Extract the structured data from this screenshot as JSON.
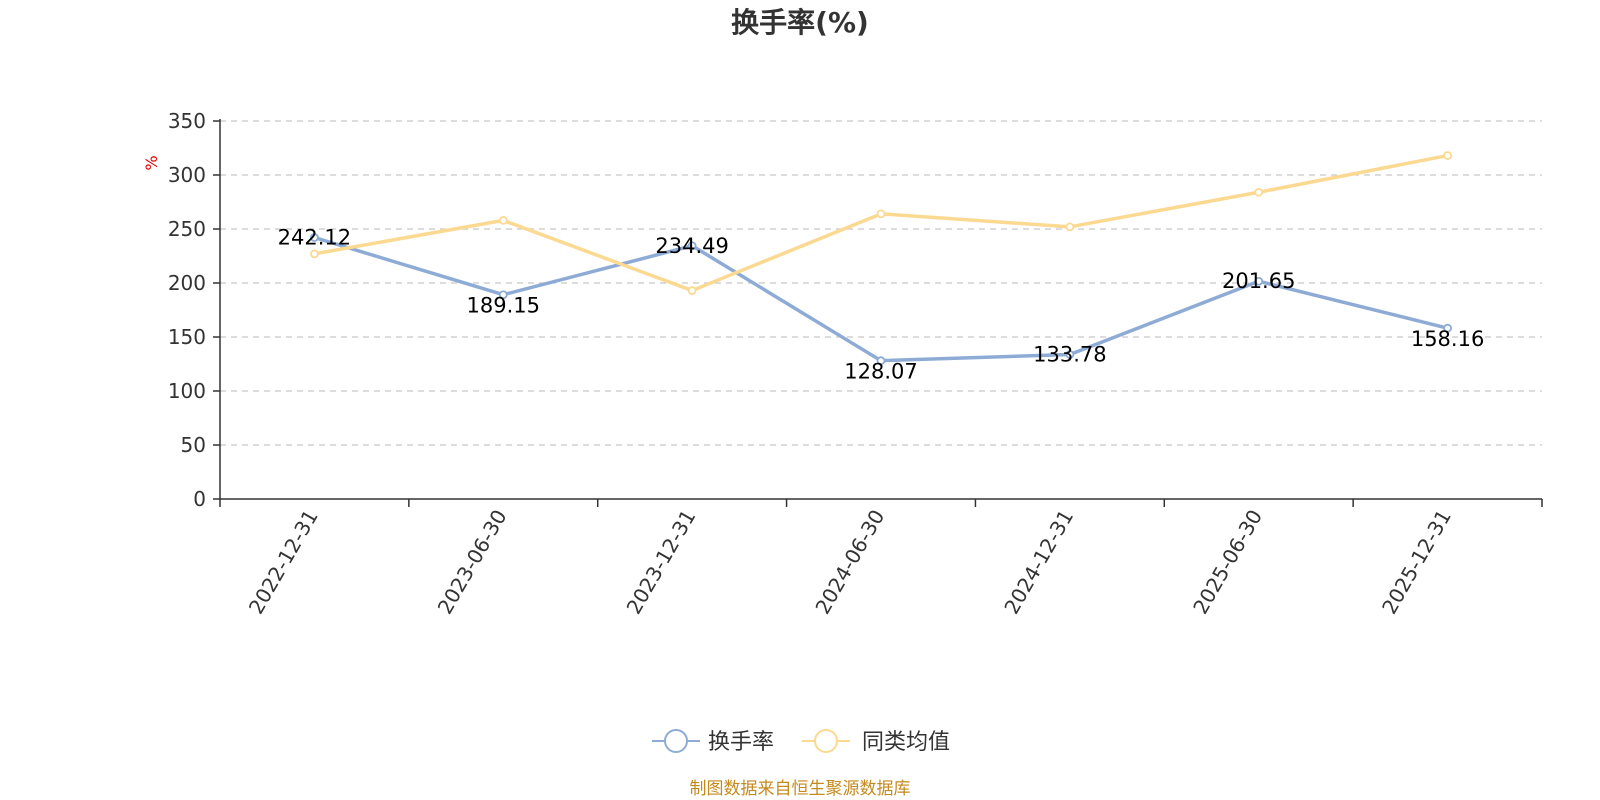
{
  "chart_data": {
    "type": "line",
    "title": "换手率(%)",
    "y_unit": "%",
    "categories": [
      "2022-12-31",
      "2023-06-30",
      "2023-12-31",
      "2024-06-30",
      "2024-12-31",
      "2025-06-30",
      "2025-12-31"
    ],
    "ylim": [
      0,
      350
    ],
    "y_ticks": [
      0,
      50,
      100,
      150,
      200,
      250,
      300,
      350
    ],
    "grid": true,
    "legend_position": "bottom-center",
    "series": [
      {
        "name": "换手率",
        "color": "#8eabd6",
        "values": [
          242.12,
          189.15,
          234.49,
          128.07,
          133.78,
          201.65,
          158.16
        ],
        "labels": [
          "242.12",
          "189.15",
          "234.49",
          "128.07",
          "133.78",
          "201.65",
          "158.16"
        ]
      },
      {
        "name": "同类均值",
        "color": "#fbd991",
        "values": [
          227,
          258,
          193,
          264,
          252,
          284,
          318
        ]
      }
    ]
  },
  "footer": {
    "source": "制图数据来自恒生聚源数据库"
  }
}
